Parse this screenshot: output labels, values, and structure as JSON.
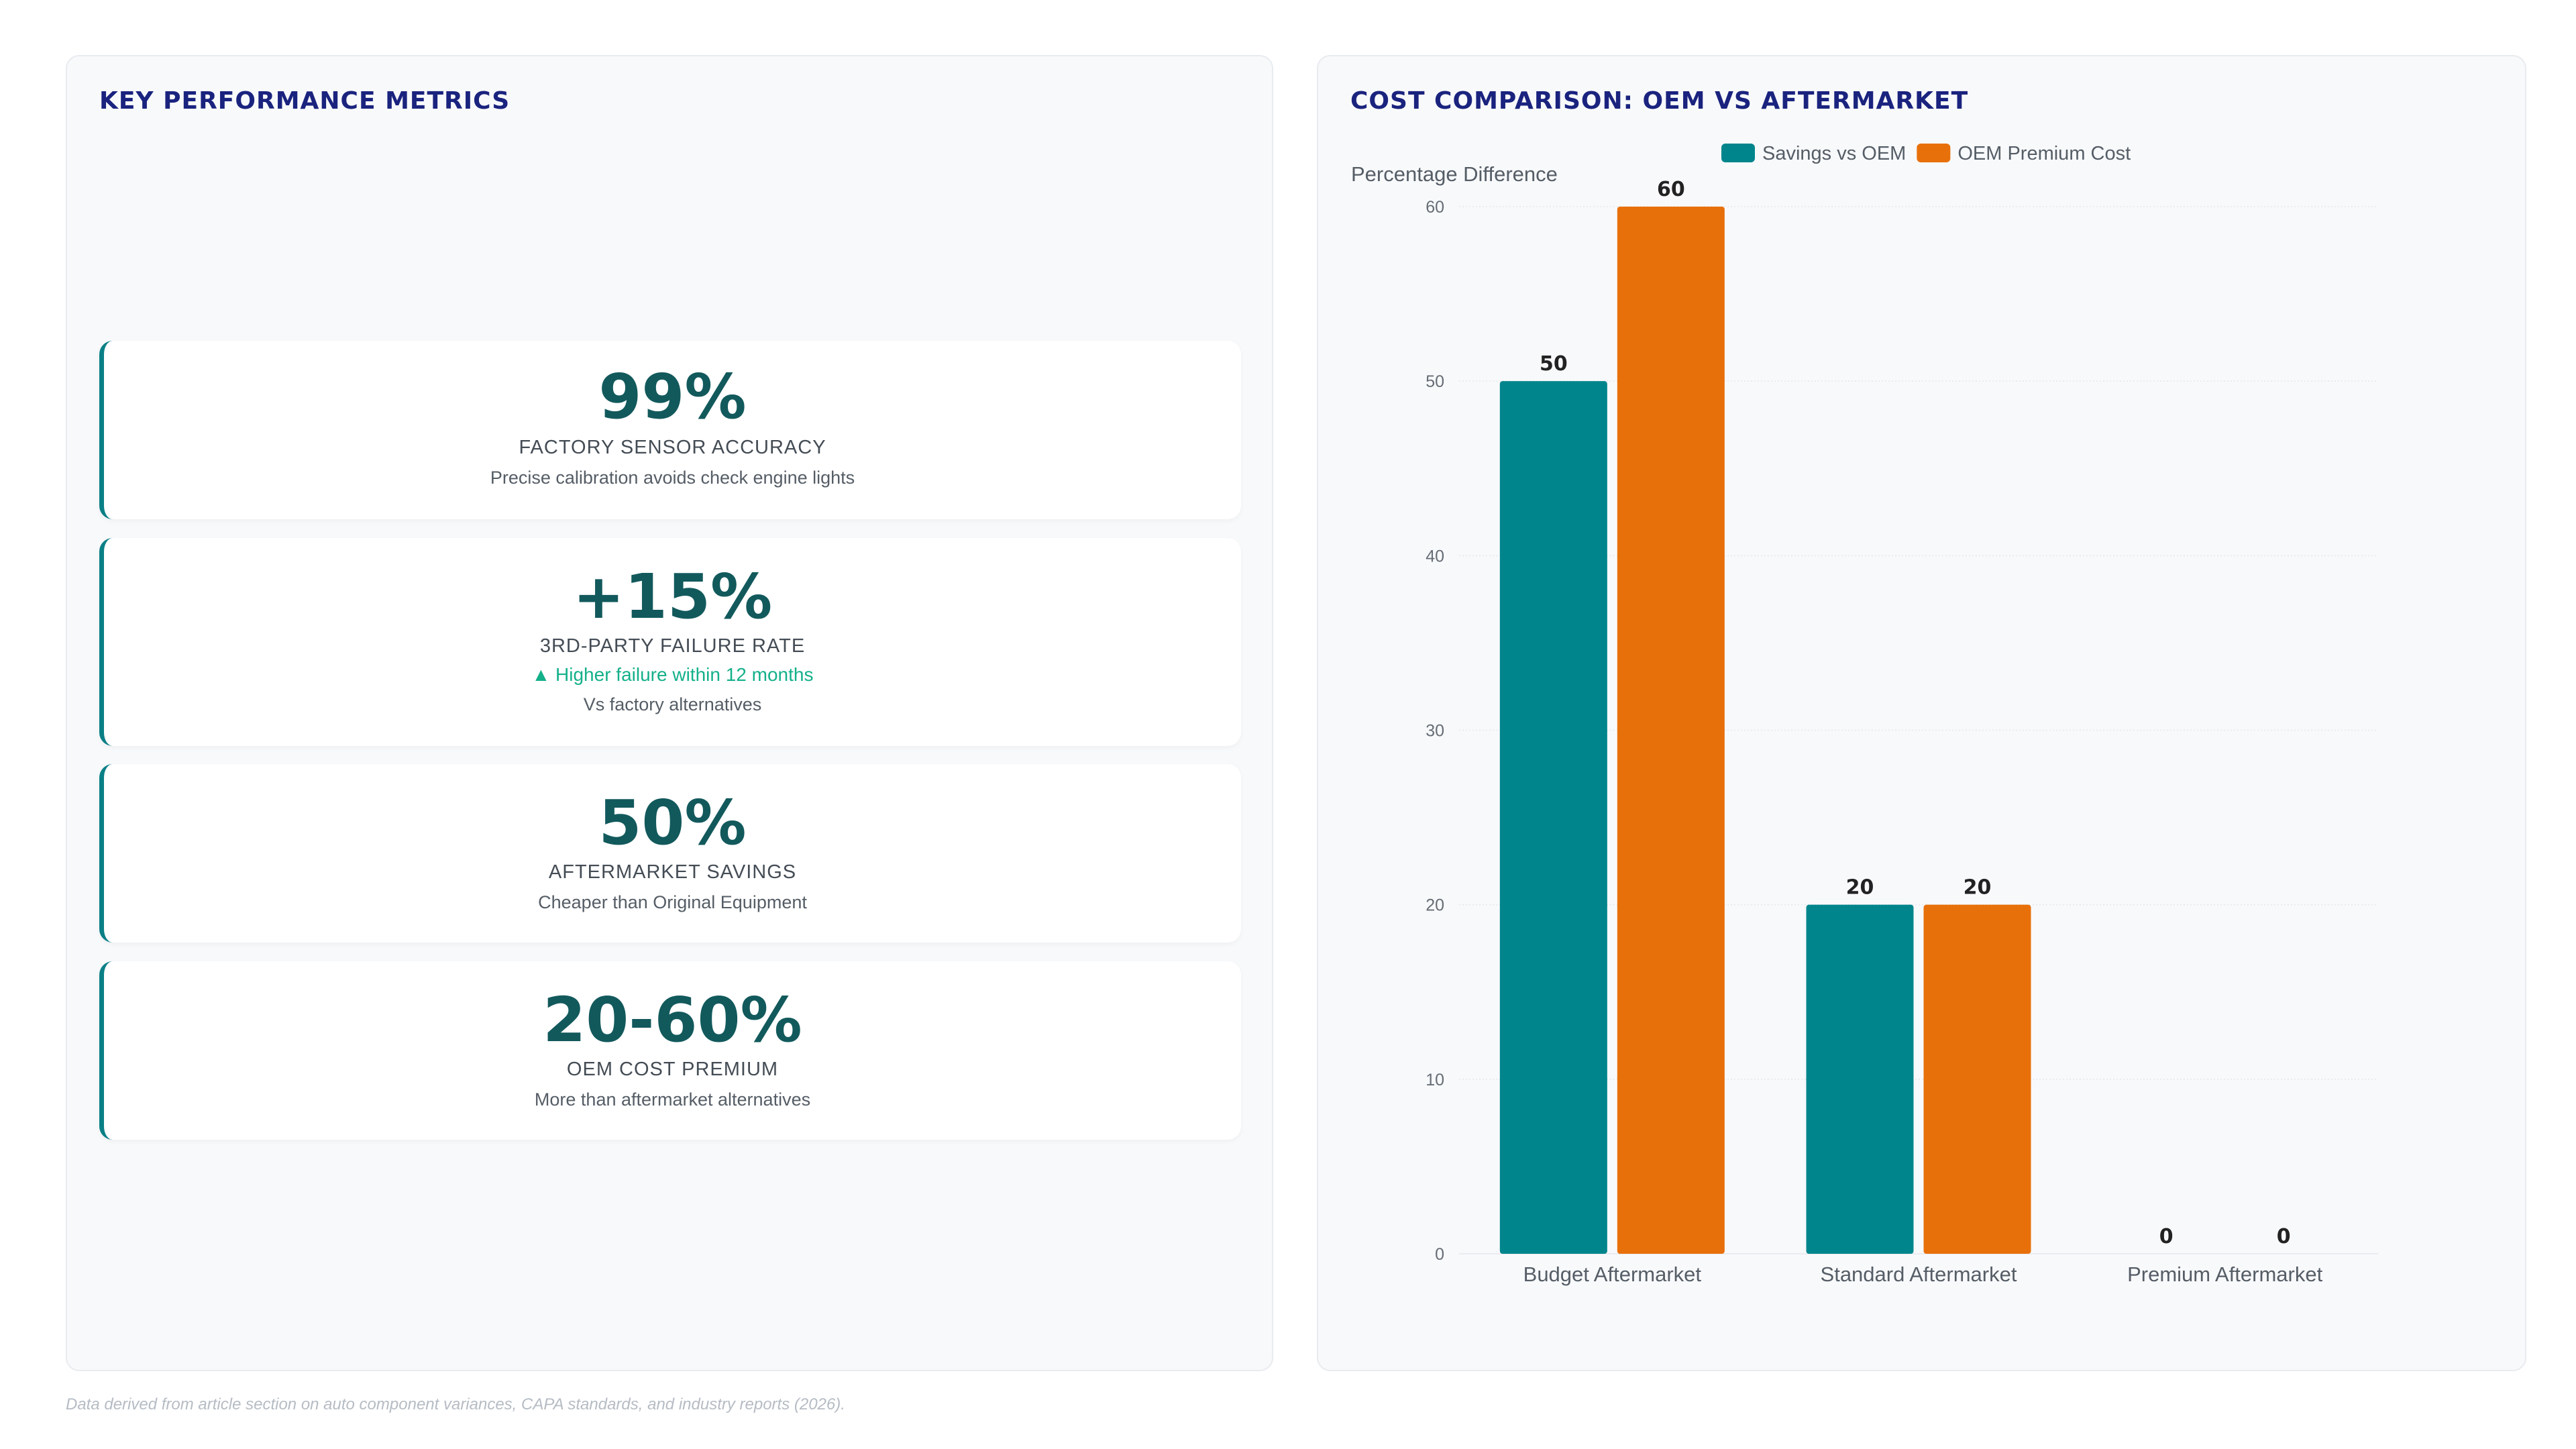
{
  "left_panel": {
    "title": "KEY PERFORMANCE METRICS",
    "kpis": [
      {
        "value": "99%",
        "label": "FACTORY SENSOR ACCURACY",
        "trend": "",
        "desc": "Precise calibration avoids check engine lights"
      },
      {
        "value": "+15%",
        "label": "3RD-PARTY FAILURE RATE",
        "trend": "▲ Higher failure within 12 months",
        "desc": "Vs factory alternatives"
      },
      {
        "value": "50%",
        "label": "AFTERMARKET SAVINGS",
        "trend": "",
        "desc": "Cheaper than Original Equipment"
      },
      {
        "value": "20-60%",
        "label": "OEM COST PREMIUM",
        "trend": "",
        "desc": "More than aftermarket alternatives"
      }
    ],
    "accent_color": "#0a7f86",
    "trend_color": "#14b08a"
  },
  "right_panel": {
    "title": "COST COMPARISON: OEM VS AFTERMARKET"
  },
  "chart_data": {
    "type": "bar",
    "title": "COST COMPARISON: OEM VS AFTERMARKET",
    "xlabel": "",
    "ylabel": "Percentage Difference",
    "categories": [
      "Budget Aftermarket",
      "Standard Aftermarket",
      "Premium Aftermarket"
    ],
    "series": [
      {
        "name": "Savings vs OEM",
        "values": [
          50,
          20,
          0
        ],
        "color": "#00858c"
      },
      {
        "name": "OEM Premium Cost",
        "values": [
          60,
          20,
          0
        ],
        "color": "#e8700a"
      }
    ],
    "ylim": [
      0,
      60
    ],
    "yticks": [
      0,
      10,
      20,
      30,
      40,
      50,
      60
    ],
    "grid": true,
    "legend_position": "top-center",
    "data_labels": true
  },
  "footnote": "Data derived from article section on auto component variances, CAPA standards, and industry reports (2026)."
}
